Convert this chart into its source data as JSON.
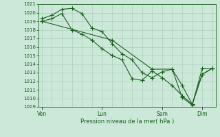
{
  "background_color": "#cce8d8",
  "grid_color": "#a8c8b8",
  "line_color": "#1a5e20",
  "marker_color": "#1a5e20",
  "title": "Pression niveau de la mer( hPa )",
  "ylim": [
    1009,
    1021
  ],
  "yticks": [
    1009,
    1010,
    1011,
    1012,
    1013,
    1014,
    1015,
    1016,
    1017,
    1018,
    1019,
    1020,
    1021
  ],
  "xtick_labels": [
    "Ven",
    "Lun",
    "Sam",
    "Dim"
  ],
  "xtick_positions": [
    0,
    36,
    72,
    96
  ],
  "xlim": [
    -2,
    104
  ],
  "series1_x": [
    0,
    6,
    12,
    18,
    24,
    30,
    36,
    42,
    48,
    54,
    60,
    66,
    72,
    78,
    84,
    90,
    96,
    102
  ],
  "series1_y": [
    1019.3,
    1019.7,
    1020.4,
    1020.5,
    1019.9,
    1018.2,
    1017.8,
    1016.4,
    1015.2,
    1014.5,
    1013.0,
    1012.4,
    1013.1,
    1013.4,
    1011.5,
    1009.3,
    1012.8,
    1013.5
  ],
  "series2_x": [
    0,
    6,
    12,
    18,
    24,
    30,
    36,
    42,
    48,
    54,
    60,
    66,
    72,
    78,
    84,
    90,
    96,
    102
  ],
  "series2_y": [
    1019.0,
    1019.3,
    1019.9,
    1018.0,
    1017.5,
    1016.8,
    1015.8,
    1015.0,
    1014.5,
    1012.3,
    1012.1,
    1013.2,
    1012.4,
    1011.5,
    1010.3,
    1009.3,
    1012.8,
    1013.5
  ],
  "series3_x": [
    0,
    42,
    66,
    78,
    84,
    90,
    96,
    102
  ],
  "series3_y": [
    1019.0,
    1016.8,
    1013.4,
    1013.4,
    1010.1,
    1009.2,
    1013.5,
    1013.5
  ]
}
